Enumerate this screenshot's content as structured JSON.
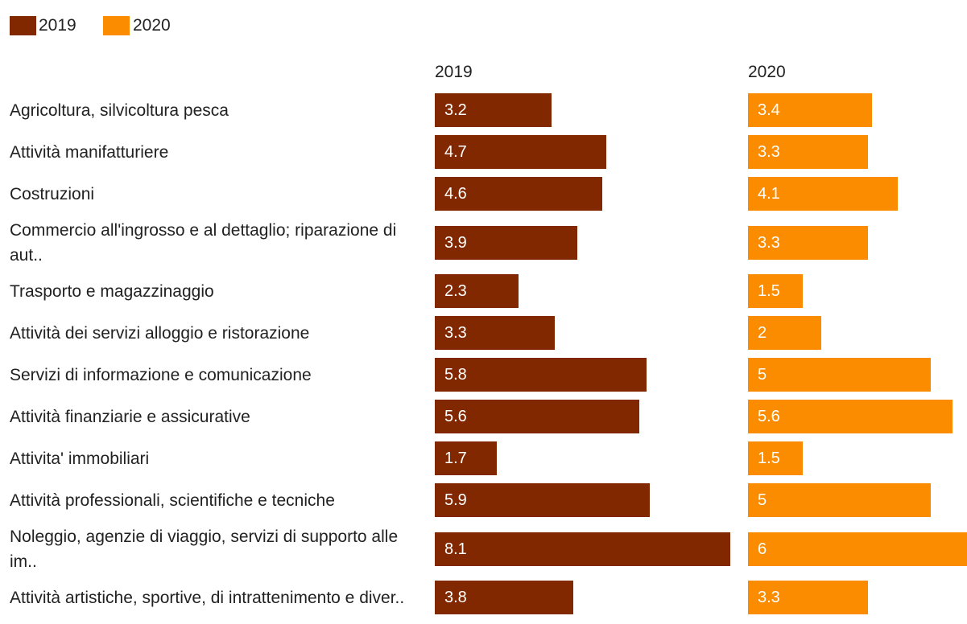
{
  "chart_data": {
    "type": "split-bar",
    "categories": [
      "Agricoltura, silvicoltura pesca",
      "Attività manifatturiere",
      "Costruzioni",
      "Commercio all'ingrosso e al dettaglio; riparazione di aut..",
      "Trasporto e magazzinaggio",
      "Attività dei servizi alloggio e ristorazione",
      "Servizi di informazione e comunicazione",
      "Attività finanziarie e assicurative",
      "Attivita' immobiliari",
      "Attività professionali, scientifiche e tecniche",
      "Noleggio, agenzie di viaggio, servizi di supporto alle im..",
      "Attività artistiche, sportive, di intrattenimento e diver.."
    ],
    "series": [
      {
        "name": "2019",
        "color": "#822800",
        "values": [
          3.2,
          4.7,
          4.6,
          3.9,
          2.3,
          3.3,
          5.8,
          5.6,
          1.7,
          5.9,
          8.1,
          3.8
        ]
      },
      {
        "name": "2020",
        "color": "#fb8c00",
        "values": [
          3.4,
          3.3,
          4.1,
          3.3,
          1.5,
          2,
          5,
          5.6,
          1.5,
          5,
          6,
          3.3
        ]
      }
    ]
  }
}
